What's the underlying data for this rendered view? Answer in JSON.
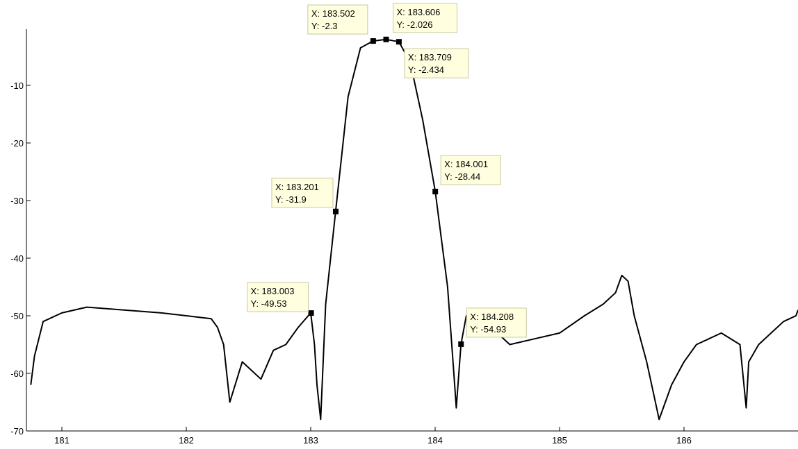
{
  "chart_data": {
    "type": "line",
    "title": "",
    "xlabel": "",
    "ylabel": "",
    "xlim": [
      180.75,
      186.95
    ],
    "ylim": [
      -70,
      0
    ],
    "x_ticks": [
      181,
      182,
      183,
      184,
      185,
      186
    ],
    "x_tick_labels": [
      "181",
      "182",
      "183",
      "184",
      "185",
      "186"
    ],
    "y_ticks": [
      -70,
      -60,
      -50,
      -40,
      -30,
      -20,
      -10
    ],
    "y_tick_labels": [
      "-70",
      "-60",
      "-50",
      "-40",
      "-30",
      "-20",
      "-10"
    ],
    "grid": false,
    "colors": {
      "line": "#000000",
      "axis": "#000000",
      "marker": "#000000",
      "tip_fill": "#ffffe0",
      "tip_border": "#c8c8a0"
    },
    "series": [
      {
        "x": [
          180.75,
          180.78,
          180.85,
          181.0,
          181.2,
          181.5,
          181.8,
          182.0,
          182.2,
          182.25,
          182.3,
          182.35,
          182.45,
          182.6,
          182.7,
          182.8,
          182.9,
          183.0,
          183.03,
          183.05,
          183.08,
          183.12,
          183.2,
          183.3,
          183.4,
          183.5,
          183.606,
          183.709,
          183.8,
          183.9,
          184.001,
          184.1,
          184.15,
          184.17,
          184.208,
          184.25,
          184.3,
          184.4,
          184.5,
          184.6,
          184.8,
          185.0,
          185.2,
          185.35,
          185.45,
          185.5,
          185.55,
          185.6,
          185.7,
          185.75,
          185.8,
          185.9,
          186.0,
          186.1,
          186.2,
          186.3,
          186.45,
          186.5,
          186.52,
          186.6,
          186.7,
          186.8,
          186.9,
          186.95
        ],
        "y": [
          -62,
          -57,
          -51,
          -49.5,
          -48.5,
          -49,
          -49.5,
          -50,
          -50.5,
          -52,
          -55,
          -65,
          -58,
          -61,
          -56,
          -55,
          -52,
          -49.5,
          -55,
          -62,
          -68,
          -48,
          -31.9,
          -12,
          -3.5,
          -2.3,
          -2.026,
          -2.434,
          -6,
          -16,
          -28.44,
          -45,
          -60,
          -66,
          -54.93,
          -50,
          -49,
          -51,
          -53,
          -55,
          -54,
          -53,
          -50,
          -48,
          -46,
          -43,
          -44,
          -50,
          -58,
          -63,
          -68,
          -62,
          -58,
          -55,
          -54,
          -53,
          -55,
          -66,
          -58,
          -55,
          -53,
          -51,
          -50,
          -49
        ]
      }
    ],
    "data_tips": [
      {
        "x": 183.003,
        "y": -49.53,
        "x_label": "X: 183.003",
        "y_label": "Y: -49.53"
      },
      {
        "x": 183.201,
        "y": -31.9,
        "x_label": "X: 183.201",
        "y_label": "Y: -31.9"
      },
      {
        "x": 183.502,
        "y": -2.3,
        "x_label": "X: 183.502",
        "y_label": "Y: -2.3"
      },
      {
        "x": 183.606,
        "y": -2.026,
        "x_label": "X: 183.606",
        "y_label": "Y: -2.026"
      },
      {
        "x": 183.709,
        "y": -2.434,
        "x_label": "X: 183.709",
        "y_label": "Y: -2.434"
      },
      {
        "x": 184.001,
        "y": -28.44,
        "x_label": "X: 184.001",
        "y_label": "Y: -28.44"
      },
      {
        "x": 184.208,
        "y": -54.93,
        "x_label": "X: 184.208",
        "y_label": "Y: -54.93"
      }
    ]
  }
}
